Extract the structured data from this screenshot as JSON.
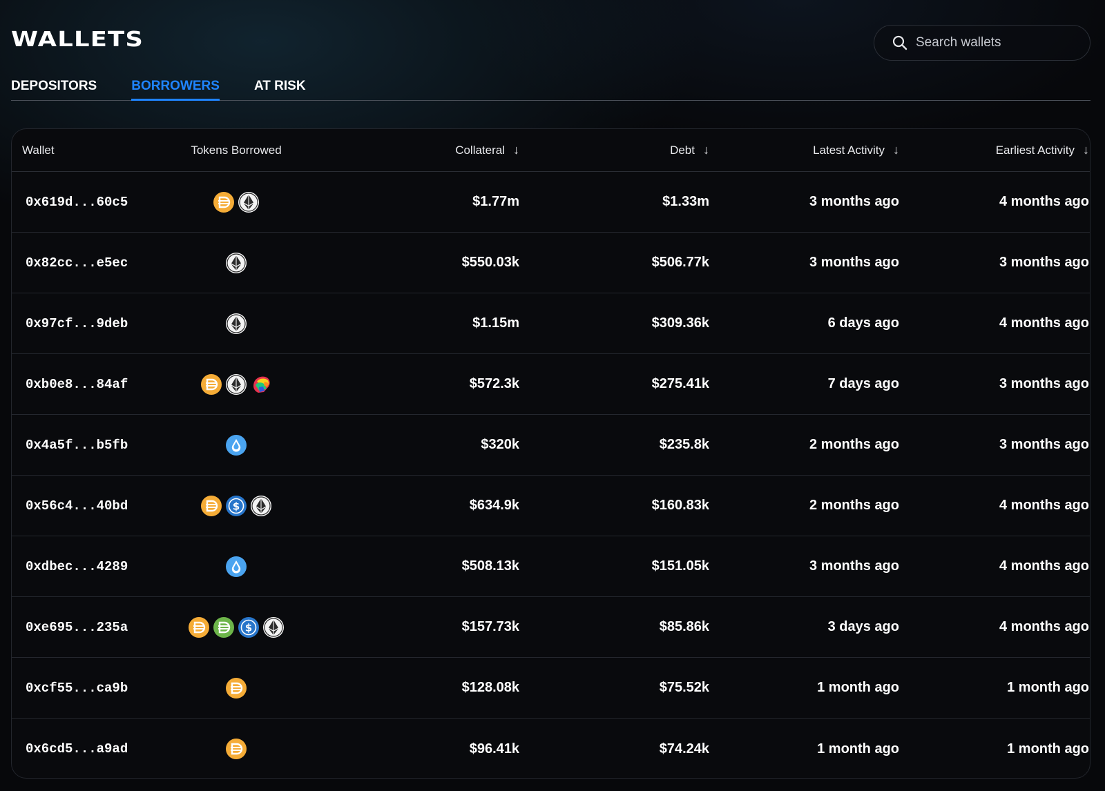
{
  "page": {
    "title": "WALLETS"
  },
  "search": {
    "placeholder": "Search wallets"
  },
  "tabs": [
    {
      "label": "DEPOSITORS",
      "active": false
    },
    {
      "label": "BORROWERS",
      "active": true
    },
    {
      "label": "AT RISK",
      "active": false
    }
  ],
  "colors": {
    "accent": "#1f84ff",
    "background": "#07080b"
  },
  "table": {
    "columns": {
      "wallet": "Wallet",
      "tokens": "Tokens Borrowed",
      "collateral": "Collateral",
      "debt": "Debt",
      "latest": "Latest Activity",
      "earliest": "Earliest Activity"
    },
    "sort_arrow": "↓",
    "rows": [
      {
        "wallet": "0x619d...60c5",
        "tokens": [
          "dai-icon",
          "eth-icon"
        ],
        "collateral": "$1.77m",
        "debt": "$1.33m",
        "latest": "3 months ago",
        "earliest": "4 months ago"
      },
      {
        "wallet": "0x82cc...e5ec",
        "tokens": [
          "eth-icon"
        ],
        "collateral": "$550.03k",
        "debt": "$506.77k",
        "latest": "3 months ago",
        "earliest": "3 months ago"
      },
      {
        "wallet": "0x97cf...9deb",
        "tokens": [
          "eth-icon"
        ],
        "collateral": "$1.15m",
        "debt": "$309.36k",
        "latest": "6 days ago",
        "earliest": "4 months ago"
      },
      {
        "wallet": "0xb0e8...84af",
        "tokens": [
          "dai-icon",
          "eth-icon",
          "crv-icon"
        ],
        "collateral": "$572.3k",
        "debt": "$275.41k",
        "latest": "7 days ago",
        "earliest": "3 months ago"
      },
      {
        "wallet": "0x4a5f...b5fb",
        "tokens": [
          "lido-icon"
        ],
        "collateral": "$320k",
        "debt": "$235.8k",
        "latest": "2 months ago",
        "earliest": "3 months ago"
      },
      {
        "wallet": "0x56c4...40bd",
        "tokens": [
          "dai-icon",
          "usdc-icon",
          "eth-icon"
        ],
        "collateral": "$634.9k",
        "debt": "$160.83k",
        "latest": "2 months ago",
        "earliest": "4 months ago"
      },
      {
        "wallet": "0xdbec...4289",
        "tokens": [
          "lido-icon"
        ],
        "collateral": "$508.13k",
        "debt": "$151.05k",
        "latest": "3 months ago",
        "earliest": "4 months ago"
      },
      {
        "wallet": "0xe695...235a",
        "tokens": [
          "dai-icon",
          "sdai-icon",
          "usdc-icon",
          "eth-icon"
        ],
        "collateral": "$157.73k",
        "debt": "$85.86k",
        "latest": "3 days ago",
        "earliest": "4 months ago"
      },
      {
        "wallet": "0xcf55...ca9b",
        "tokens": [
          "dai-icon"
        ],
        "collateral": "$128.08k",
        "debt": "$75.52k",
        "latest": "1 month ago",
        "earliest": "1 month ago"
      },
      {
        "wallet": "0x6cd5...a9ad",
        "tokens": [
          "dai-icon"
        ],
        "collateral": "$96.41k",
        "debt": "$74.24k",
        "latest": "1 month ago",
        "earliest": "1 month ago"
      }
    ]
  }
}
